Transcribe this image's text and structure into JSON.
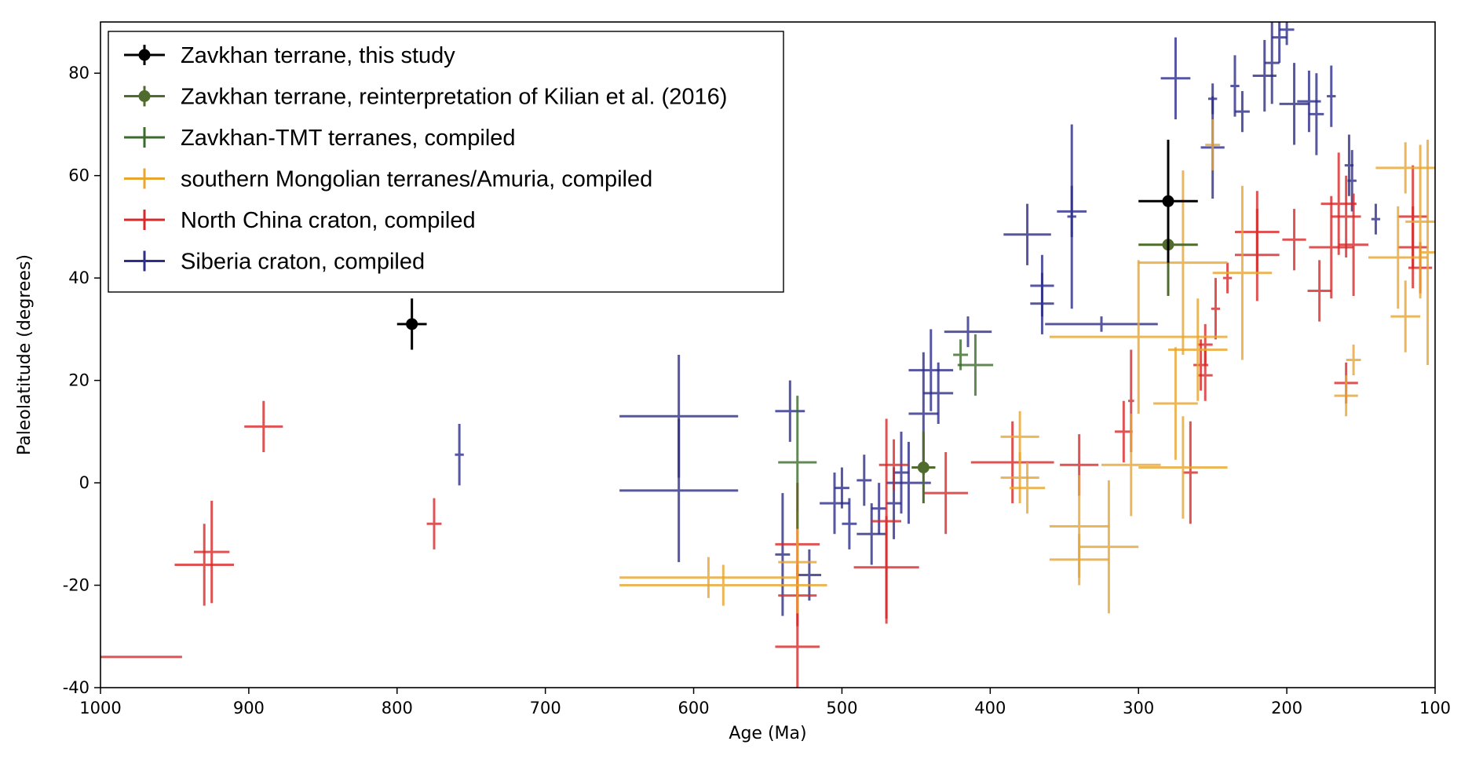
{
  "chart_data": {
    "type": "scatter",
    "title": "",
    "xlabel": "Age (Ma)",
    "ylabel": "Paleolatitude (degrees)",
    "xlim": [
      1000,
      100
    ],
    "ylim": [
      -40,
      90
    ],
    "x_inverted": true,
    "xticks": [
      1000,
      900,
      800,
      700,
      600,
      500,
      400,
      300,
      200,
      100
    ],
    "yticks": [
      -40,
      -20,
      0,
      20,
      40,
      60,
      80
    ],
    "grid": false,
    "legend_position": "top-left",
    "series": [
      {
        "name": "Zavkhan terrane, this study",
        "color": "#000000",
        "marker": "circle",
        "points": [
          {
            "x": 790,
            "y": 31,
            "x_minus": 10,
            "x_plus": 10,
            "y_minus": 5,
            "y_plus": 5
          },
          {
            "x": 280,
            "y": 55,
            "x_minus": 20,
            "x_plus": 20,
            "y_minus": 12,
            "y_plus": 12
          }
        ]
      },
      {
        "name": "Zavkhan terrane, reinterpretation of Kilian et al. (2016)",
        "color": "#4f6b2e",
        "marker": "circle",
        "points": [
          {
            "x": 445,
            "y": 3,
            "x_minus": 8,
            "x_plus": 8,
            "y_minus": 7,
            "y_plus": 7
          },
          {
            "x": 280,
            "y": 46.5,
            "x_minus": 20,
            "x_plus": 20,
            "y_minus": 10,
            "y_plus": 10
          }
        ]
      },
      {
        "name": "Zavkhan-TMT terranes, compiled",
        "color": "#3b6b2c",
        "marker": "none",
        "points": [
          {
            "x": 530,
            "y": 4,
            "x_minus": 13,
            "x_plus": 13,
            "y_minus": 13,
            "y_plus": 13
          },
          {
            "x": 420,
            "y": 25,
            "x_minus": 5,
            "x_plus": 5,
            "y_minus": 3,
            "y_plus": 3
          },
          {
            "x": 410,
            "y": 23,
            "x_minus": 12,
            "x_plus": 12,
            "y_minus": 6,
            "y_plus": 6
          }
        ]
      },
      {
        "name": "southern Mongolian terranes/Amuria, compiled",
        "color": "#e8a631",
        "marker": "none",
        "points": [
          {
            "x": 590,
            "y": -18.5,
            "x_minus": 60,
            "x_plus": 60,
            "y_minus": 4,
            "y_plus": 4
          },
          {
            "x": 580,
            "y": -20,
            "x_minus": 70,
            "x_plus": 70,
            "y_minus": 4,
            "y_plus": 4
          },
          {
            "x": 530,
            "y": -15.5,
            "x_minus": 13,
            "x_plus": 13,
            "y_minus": 10,
            "y_plus": 10
          },
          {
            "x": 380,
            "y": 9,
            "x_minus": 13,
            "x_plus": 13,
            "y_minus": 5,
            "y_plus": 5
          },
          {
            "x": 380,
            "y": 1,
            "x_minus": 13,
            "x_plus": 13,
            "y_minus": 5,
            "y_plus": 5
          },
          {
            "x": 375,
            "y": -1,
            "x_minus": 12,
            "x_plus": 12,
            "y_minus": 5,
            "y_plus": 5
          },
          {
            "x": 340,
            "y": -8.5,
            "x_minus": 20,
            "x_plus": 20,
            "y_minus": 10,
            "y_plus": 10
          },
          {
            "x": 340,
            "y": -15,
            "x_minus": 20,
            "x_plus": 20,
            "y_minus": 5,
            "y_plus": 5
          },
          {
            "x": 320,
            "y": -12.5,
            "x_minus": 20,
            "x_plus": 20,
            "y_minus": 13,
            "y_plus": 13
          },
          {
            "x": 305,
            "y": 3.5,
            "x_minus": 20,
            "x_plus": 20,
            "y_minus": 10,
            "y_plus": 10
          },
          {
            "x": 300,
            "y": 28.5,
            "x_minus": 60,
            "x_plus": 60,
            "y_minus": 15,
            "y_plus": 15
          },
          {
            "x": 270,
            "y": 43,
            "x_minus": 30,
            "x_plus": 30,
            "y_minus": 18,
            "y_plus": 18
          },
          {
            "x": 260,
            "y": 26,
            "x_minus": 20,
            "x_plus": 20,
            "y_minus": 10,
            "y_plus": 10
          },
          {
            "x": 275,
            "y": 15.5,
            "x_minus": 15,
            "x_plus": 15,
            "y_minus": 11,
            "y_plus": 11
          },
          {
            "x": 270,
            "y": 3,
            "x_minus": 30,
            "x_plus": 30,
            "y_minus": 10,
            "y_plus": 10
          },
          {
            "x": 250,
            "y": 66,
            "x_minus": 5,
            "x_plus": 5,
            "y_minus": 5,
            "y_plus": 5
          },
          {
            "x": 230,
            "y": 41,
            "x_minus": 20,
            "x_plus": 20,
            "y_minus": 17,
            "y_plus": 17
          },
          {
            "x": 160,
            "y": 17,
            "x_minus": 8,
            "x_plus": 8,
            "y_minus": 4,
            "y_plus": 4
          },
          {
            "x": 155,
            "y": 24,
            "x_minus": 5,
            "x_plus": 5,
            "y_minus": 3,
            "y_plus": 3
          },
          {
            "x": 120,
            "y": 61.5,
            "x_minus": 20,
            "x_plus": 20,
            "y_minus": 5,
            "y_plus": 5
          },
          {
            "x": 125,
            "y": 44,
            "x_minus": 20,
            "x_plus": 20,
            "y_minus": 10,
            "y_plus": 10
          },
          {
            "x": 120,
            "y": 32.5,
            "x_minus": 10,
            "x_plus": 10,
            "y_minus": 7,
            "y_plus": 7
          },
          {
            "x": 110,
            "y": 51,
            "x_minus": 10,
            "x_plus": 10,
            "y_minus": 15,
            "y_plus": 15
          },
          {
            "x": 105,
            "y": 45,
            "x_minus": 5,
            "x_plus": 5,
            "y_minus": 22,
            "y_plus": 22
          }
        ]
      },
      {
        "name": "North China craton, compiled",
        "color": "#d62a2a",
        "marker": "none",
        "points": [
          {
            "x": 975,
            "y": -34,
            "x_minus": 30,
            "x_plus": 30,
            "y_minus": 0,
            "y_plus": 0
          },
          {
            "x": 930,
            "y": -16,
            "x_minus": 20,
            "x_plus": 20,
            "y_minus": 8,
            "y_plus": 8
          },
          {
            "x": 925,
            "y": -13.5,
            "x_minus": 12,
            "x_plus": 12,
            "y_minus": 10,
            "y_plus": 10
          },
          {
            "x": 890,
            "y": 11,
            "x_minus": 13,
            "x_plus": 13,
            "y_minus": 5,
            "y_plus": 5
          },
          {
            "x": 775,
            "y": -8,
            "x_minus": 5,
            "x_plus": 5,
            "y_minus": 5,
            "y_plus": 5
          },
          {
            "x": 530,
            "y": -32,
            "x_minus": 15,
            "x_plus": 15,
            "y_minus": 8,
            "y_plus": 8
          },
          {
            "x": 530,
            "y": -12,
            "x_minus": 15,
            "x_plus": 15,
            "y_minus": 12,
            "y_plus": 12
          },
          {
            "x": 530,
            "y": -22,
            "x_minus": 13,
            "x_plus": 13,
            "y_minus": 6,
            "y_plus": 6
          },
          {
            "x": 470,
            "y": -16.5,
            "x_minus": 22,
            "x_plus": 22,
            "y_minus": 10,
            "y_plus": 10
          },
          {
            "x": 470,
            "y": -7.5,
            "x_minus": 10,
            "x_plus": 10,
            "y_minus": 20,
            "y_plus": 20
          },
          {
            "x": 465,
            "y": 3.5,
            "x_minus": 10,
            "x_plus": 10,
            "y_minus": 5,
            "y_plus": 5
          },
          {
            "x": 430,
            "y": -2,
            "x_minus": 15,
            "x_plus": 15,
            "y_minus": 8,
            "y_plus": 8
          },
          {
            "x": 385,
            "y": 4,
            "x_minus": 28,
            "x_plus": 28,
            "y_minus": 8,
            "y_plus": 8
          },
          {
            "x": 340,
            "y": 3.5,
            "x_minus": 13,
            "x_plus": 13,
            "y_minus": 6,
            "y_plus": 6
          },
          {
            "x": 310,
            "y": 10,
            "x_minus": 6,
            "x_plus": 6,
            "y_minus": 6,
            "y_plus": 6
          },
          {
            "x": 305,
            "y": 16,
            "x_minus": 2,
            "x_plus": 2,
            "y_minus": 10,
            "y_plus": 10
          },
          {
            "x": 265,
            "y": 2,
            "x_minus": 5,
            "x_plus": 5,
            "y_minus": 10,
            "y_plus": 10
          },
          {
            "x": 258,
            "y": 23,
            "x_minus": 5,
            "x_plus": 5,
            "y_minus": 5,
            "y_plus": 5
          },
          {
            "x": 255,
            "y": 21,
            "x_minus": 5,
            "x_plus": 5,
            "y_minus": 5,
            "y_plus": 5
          },
          {
            "x": 255,
            "y": 27,
            "x_minus": 5,
            "x_plus": 5,
            "y_minus": 4,
            "y_plus": 4
          },
          {
            "x": 248,
            "y": 34,
            "x_minus": 3,
            "x_plus": 3,
            "y_minus": 6,
            "y_plus": 6
          },
          {
            "x": 240,
            "y": 40,
            "x_minus": 3,
            "x_plus": 3,
            "y_minus": 3,
            "y_plus": 3
          },
          {
            "x": 220,
            "y": 49,
            "x_minus": 15,
            "x_plus": 15,
            "y_minus": 8,
            "y_plus": 8
          },
          {
            "x": 220,
            "y": 44.5,
            "x_minus": 15,
            "x_plus": 15,
            "y_minus": 9,
            "y_plus": 9
          },
          {
            "x": 195,
            "y": 47.5,
            "x_minus": 8,
            "x_plus": 8,
            "y_minus": 6,
            "y_plus": 6
          },
          {
            "x": 178,
            "y": 37.5,
            "x_minus": 8,
            "x_plus": 8,
            "y_minus": 6,
            "y_plus": 6
          },
          {
            "x": 165,
            "y": 54.5,
            "x_minus": 12,
            "x_plus": 12,
            "y_minus": 10,
            "y_plus": 10
          },
          {
            "x": 170,
            "y": 46,
            "x_minus": 15,
            "x_plus": 15,
            "y_minus": 10,
            "y_plus": 10
          },
          {
            "x": 160,
            "y": 52,
            "x_minus": 10,
            "x_plus": 10,
            "y_minus": 8,
            "y_plus": 8
          },
          {
            "x": 155,
            "y": 46.5,
            "x_minus": 10,
            "x_plus": 10,
            "y_minus": 10,
            "y_plus": 10
          },
          {
            "x": 160,
            "y": 19.5,
            "x_minus": 8,
            "x_plus": 8,
            "y_minus": 4,
            "y_plus": 4
          },
          {
            "x": 115,
            "y": 52,
            "x_minus": 10,
            "x_plus": 10,
            "y_minus": 10,
            "y_plus": 10
          },
          {
            "x": 115,
            "y": 46,
            "x_minus": 10,
            "x_plus": 10,
            "y_minus": 8,
            "y_plus": 8
          },
          {
            "x": 110,
            "y": 42,
            "x_minus": 8,
            "x_plus": 8,
            "y_minus": 5,
            "y_plus": 5
          }
        ]
      },
      {
        "name": "Siberia craton, compiled",
        "color": "#2d2d8a",
        "marker": "none",
        "points": [
          {
            "x": 758,
            "y": 5.5,
            "x_minus": 3,
            "x_plus": 3,
            "y_minus": 6,
            "y_plus": 6
          },
          {
            "x": 610,
            "y": 13,
            "x_minus": 40,
            "x_plus": 40,
            "y_minus": 12,
            "y_plus": 12
          },
          {
            "x": 610,
            "y": -1.5,
            "x_minus": 40,
            "x_plus": 40,
            "y_minus": 14,
            "y_plus": 14
          },
          {
            "x": 535,
            "y": 14,
            "x_minus": 10,
            "x_plus": 10,
            "y_minus": 6,
            "y_plus": 6
          },
          {
            "x": 540,
            "y": -14,
            "x_minus": 5,
            "x_plus": 5,
            "y_minus": 12,
            "y_plus": 12
          },
          {
            "x": 522,
            "y": -18,
            "x_minus": 8,
            "x_plus": 8,
            "y_minus": 5,
            "y_plus": 5
          },
          {
            "x": 505,
            "y": -4,
            "x_minus": 10,
            "x_plus": 10,
            "y_minus": 6,
            "y_plus": 6
          },
          {
            "x": 500,
            "y": -1,
            "x_minus": 5,
            "x_plus": 5,
            "y_minus": 4,
            "y_plus": 4
          },
          {
            "x": 495,
            "y": -8,
            "x_minus": 5,
            "x_plus": 5,
            "y_minus": 5,
            "y_plus": 5
          },
          {
            "x": 485,
            "y": 0.5,
            "x_minus": 5,
            "x_plus": 5,
            "y_minus": 5,
            "y_plus": 5
          },
          {
            "x": 480,
            "y": -10,
            "x_minus": 10,
            "x_plus": 10,
            "y_minus": 6,
            "y_plus": 6
          },
          {
            "x": 475,
            "y": -5,
            "x_minus": 5,
            "x_plus": 5,
            "y_minus": 5,
            "y_plus": 5
          },
          {
            "x": 465,
            "y": -4,
            "x_minus": 5,
            "x_plus": 5,
            "y_minus": 7,
            "y_plus": 7
          },
          {
            "x": 460,
            "y": 2,
            "x_minus": 5,
            "x_plus": 5,
            "y_minus": 8,
            "y_plus": 8
          },
          {
            "x": 455,
            "y": 0,
            "x_minus": 15,
            "x_plus": 15,
            "y_minus": 8,
            "y_plus": 8
          },
          {
            "x": 445,
            "y": 13.5,
            "x_minus": 10,
            "x_plus": 10,
            "y_minus": 12,
            "y_plus": 12
          },
          {
            "x": 440,
            "y": 22,
            "x_minus": 15,
            "x_plus": 15,
            "y_minus": 8,
            "y_plus": 8
          },
          {
            "x": 435,
            "y": 17.5,
            "x_minus": 10,
            "x_plus": 10,
            "y_minus": 6,
            "y_plus": 6
          },
          {
            "x": 415,
            "y": 29.5,
            "x_minus": 16,
            "x_plus": 16,
            "y_minus": 3,
            "y_plus": 3
          },
          {
            "x": 375,
            "y": 48.5,
            "x_minus": 16,
            "x_plus": 16,
            "y_minus": 6,
            "y_plus": 6
          },
          {
            "x": 365,
            "y": 38.5,
            "x_minus": 8,
            "x_plus": 8,
            "y_minus": 6,
            "y_plus": 6
          },
          {
            "x": 365,
            "y": 35,
            "x_minus": 8,
            "x_plus": 8,
            "y_minus": 6,
            "y_plus": 6
          },
          {
            "x": 345,
            "y": 53,
            "x_minus": 10,
            "x_plus": 10,
            "y_minus": 5,
            "y_plus": 5
          },
          {
            "x": 345,
            "y": 52,
            "x_minus": 3,
            "x_plus": 3,
            "y_minus": 18,
            "y_plus": 18
          },
          {
            "x": 325,
            "y": 31,
            "x_minus": 38,
            "x_plus": 38,
            "y_minus": 1.5,
            "y_plus": 1.5
          },
          {
            "x": 275,
            "y": 79,
            "x_minus": 10,
            "x_plus": 10,
            "y_minus": 8,
            "y_plus": 8
          },
          {
            "x": 250,
            "y": 65.5,
            "x_minus": 8,
            "x_plus": 8,
            "y_minus": 10,
            "y_plus": 10
          },
          {
            "x": 250,
            "y": 75,
            "x_minus": 3,
            "x_plus": 3,
            "y_minus": 3,
            "y_plus": 3
          },
          {
            "x": 230,
            "y": 72.5,
            "x_minus": 5,
            "x_plus": 5,
            "y_minus": 4,
            "y_plus": 4
          },
          {
            "x": 235,
            "y": 77.5,
            "x_minus": 3,
            "x_plus": 3,
            "y_minus": 6,
            "y_plus": 6
          },
          {
            "x": 215,
            "y": 79.5,
            "x_minus": 8,
            "x_plus": 8,
            "y_minus": 7,
            "y_plus": 7
          },
          {
            "x": 210,
            "y": 82,
            "x_minus": 5,
            "x_plus": 5,
            "y_minus": 8,
            "y_plus": 8
          },
          {
            "x": 205,
            "y": 87,
            "x_minus": 5,
            "x_plus": 5,
            "y_minus": 5,
            "y_plus": 5
          },
          {
            "x": 200,
            "y": 88.5,
            "x_minus": 5,
            "x_plus": 5,
            "y_minus": 3,
            "y_plus": 3
          },
          {
            "x": 195,
            "y": 74,
            "x_minus": 10,
            "x_plus": 10,
            "y_minus": 8,
            "y_plus": 8
          },
          {
            "x": 185,
            "y": 74.5,
            "x_minus": 8,
            "x_plus": 8,
            "y_minus": 6,
            "y_plus": 6
          },
          {
            "x": 180,
            "y": 72,
            "x_minus": 5,
            "x_plus": 5,
            "y_minus": 8,
            "y_plus": 8
          },
          {
            "x": 170,
            "y": 75.5,
            "x_minus": 3,
            "x_plus": 3,
            "y_minus": 6,
            "y_plus": 6
          },
          {
            "x": 158,
            "y": 62,
            "x_minus": 3,
            "x_plus": 3,
            "y_minus": 6,
            "y_plus": 6
          },
          {
            "x": 156,
            "y": 59,
            "x_minus": 3,
            "x_plus": 3,
            "y_minus": 6,
            "y_plus": 6
          },
          {
            "x": 140,
            "y": 51.5,
            "x_minus": 3,
            "x_plus": 3,
            "y_minus": 3,
            "y_plus": 3
          }
        ]
      }
    ]
  }
}
